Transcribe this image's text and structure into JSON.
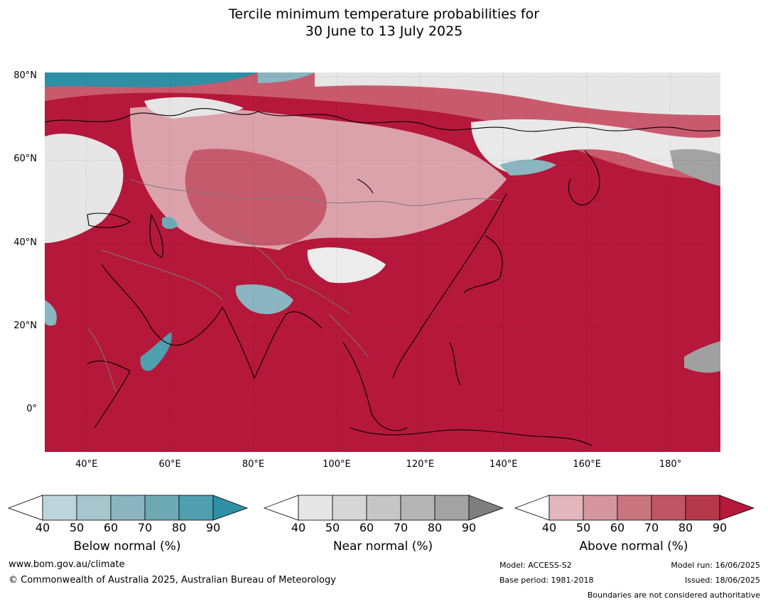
{
  "title": {
    "line1": "Tercile minimum temperature probabilities for",
    "line2": "30 June to 13 July 2025"
  },
  "map": {
    "lat_labels": [
      "80°N",
      "60°N",
      "40°N",
      "20°N",
      "0°"
    ],
    "lon_labels": [
      "40°E",
      "60°E",
      "80°E",
      "100°E",
      "120°E",
      "140°E",
      "160°E",
      "180°"
    ],
    "lat_range": [
      -10,
      81
    ],
    "lon_range": [
      30,
      192
    ],
    "colors": {
      "above_dark": "#b5183a",
      "above_mid": "#c95a6e",
      "above_light": "#e2b6bd",
      "near_light": "#e6e6e6",
      "near_mid": "#a3a3a3",
      "below_light": "#bcd4dc",
      "below_dark": "#2e8fa5",
      "coast": "#000000",
      "border": "#7a7a7a"
    }
  },
  "colorbars": [
    {
      "name": "below",
      "label": "Below normal (%)",
      "ticks": [
        "40",
        "50",
        "60",
        "70",
        "80",
        "90"
      ],
      "colors": [
        "#bdd4dc",
        "#a6c6cd",
        "#8bb5c0",
        "#6eaab6",
        "#4f9fae",
        "#2e8fa5"
      ]
    },
    {
      "name": "near",
      "label": "Near normal (%)",
      "ticks": [
        "40",
        "50",
        "60",
        "70",
        "80",
        "90"
      ],
      "colors": [
        "#e6e6e6",
        "#d6d6d6",
        "#c6c6c6",
        "#b5b5b5",
        "#a3a3a3",
        "#7f7f7f"
      ]
    },
    {
      "name": "above",
      "label": "Above normal (%)",
      "ticks": [
        "40",
        "50",
        "60",
        "70",
        "80",
        "90"
      ],
      "colors": [
        "#e2b6bd",
        "#d5969f",
        "#c97580",
        "#be5666",
        "#b6384b",
        "#b5183a"
      ]
    }
  ],
  "footer": {
    "website": "www.bom.gov.au/climate",
    "copyright": "© Commonwealth of Australia 2025, Australian Bureau of Meteorology",
    "model": "Model: ACCESS-S2",
    "base_period": "Base period: 1981-2018",
    "model_run": "Model run: 16/06/2025",
    "issued": "Issued: 18/06/2025",
    "disclaimer": "Boundaries are not considered authoritative"
  }
}
